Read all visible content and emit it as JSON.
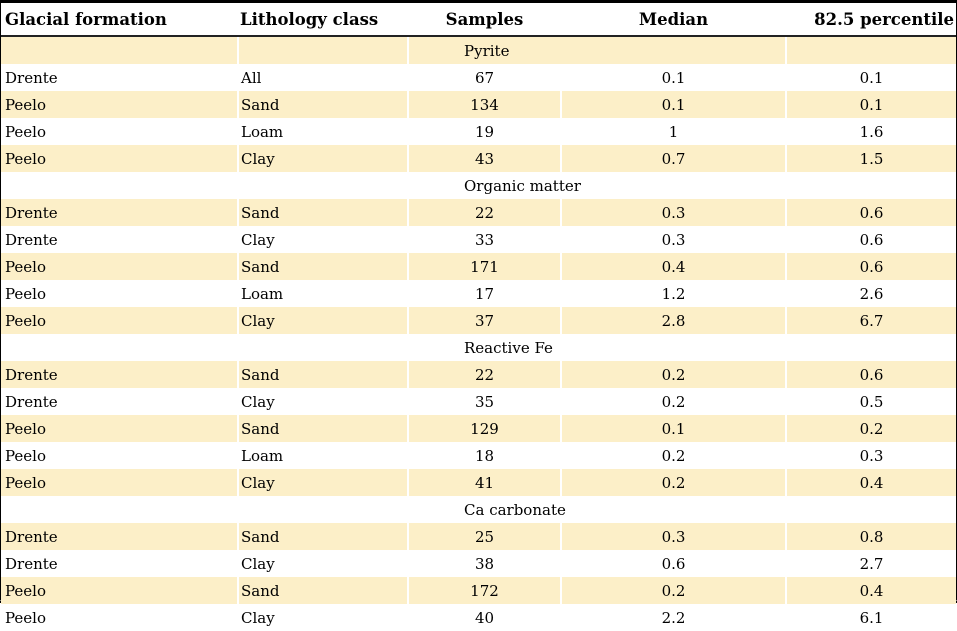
{
  "colors": {
    "stripe": "#FCEFC8",
    "border": "#000000",
    "header_rule": "#222222"
  },
  "table": {
    "columns": [
      "Glacial formation",
      "Lithology class",
      "Samples",
      "Median",
      "82.5 percentile"
    ],
    "sections": [
      {
        "title": "Pyrite",
        "rows": [
          [
            "Drente",
            "All",
            "67",
            "0.1",
            "0.1"
          ],
          [
            "Peelo",
            "Sand",
            "134",
            "0.1",
            "0.1"
          ],
          [
            "Peelo",
            "Loam",
            "19",
            "1",
            "1.6"
          ],
          [
            "Peelo",
            "Clay",
            "43",
            "0.7",
            "1.5"
          ]
        ]
      },
      {
        "title": "Organic matter",
        "rows": [
          [
            "Drente",
            "Sand",
            "22",
            "0.3",
            "0.6"
          ],
          [
            "Drente",
            "Clay",
            "33",
            "0.3",
            "0.6"
          ],
          [
            "Peelo",
            "Sand",
            "171",
            "0.4",
            "0.6"
          ],
          [
            "Peelo",
            "Loam",
            "17",
            "1.2",
            "2.6"
          ],
          [
            "Peelo",
            "Clay",
            "37",
            "2.8",
            "6.7"
          ]
        ]
      },
      {
        "title": "Reactive Fe",
        "rows": [
          [
            "Drente",
            "Sand",
            "22",
            "0.2",
            "0.6"
          ],
          [
            "Drente",
            "Clay",
            "35",
            "0.2",
            "0.5"
          ],
          [
            "Peelo",
            "Sand",
            "129",
            "0.1",
            "0.2"
          ],
          [
            "Peelo",
            "Loam",
            "18",
            "0.2",
            "0.3"
          ],
          [
            "Peelo",
            "Clay",
            "41",
            "0.2",
            "0.4"
          ]
        ]
      },
      {
        "title": "Ca carbonate",
        "rows": [
          [
            "Drente",
            "Sand",
            "25",
            "0.3",
            "0.8"
          ],
          [
            "Drente",
            "Clay",
            "38",
            "0.6",
            "2.7"
          ],
          [
            "Peelo",
            "Sand",
            "172",
            "0.2",
            "0.4"
          ],
          [
            "Peelo",
            "Clay",
            "40",
            "2.2",
            "6.1"
          ]
        ]
      }
    ]
  }
}
